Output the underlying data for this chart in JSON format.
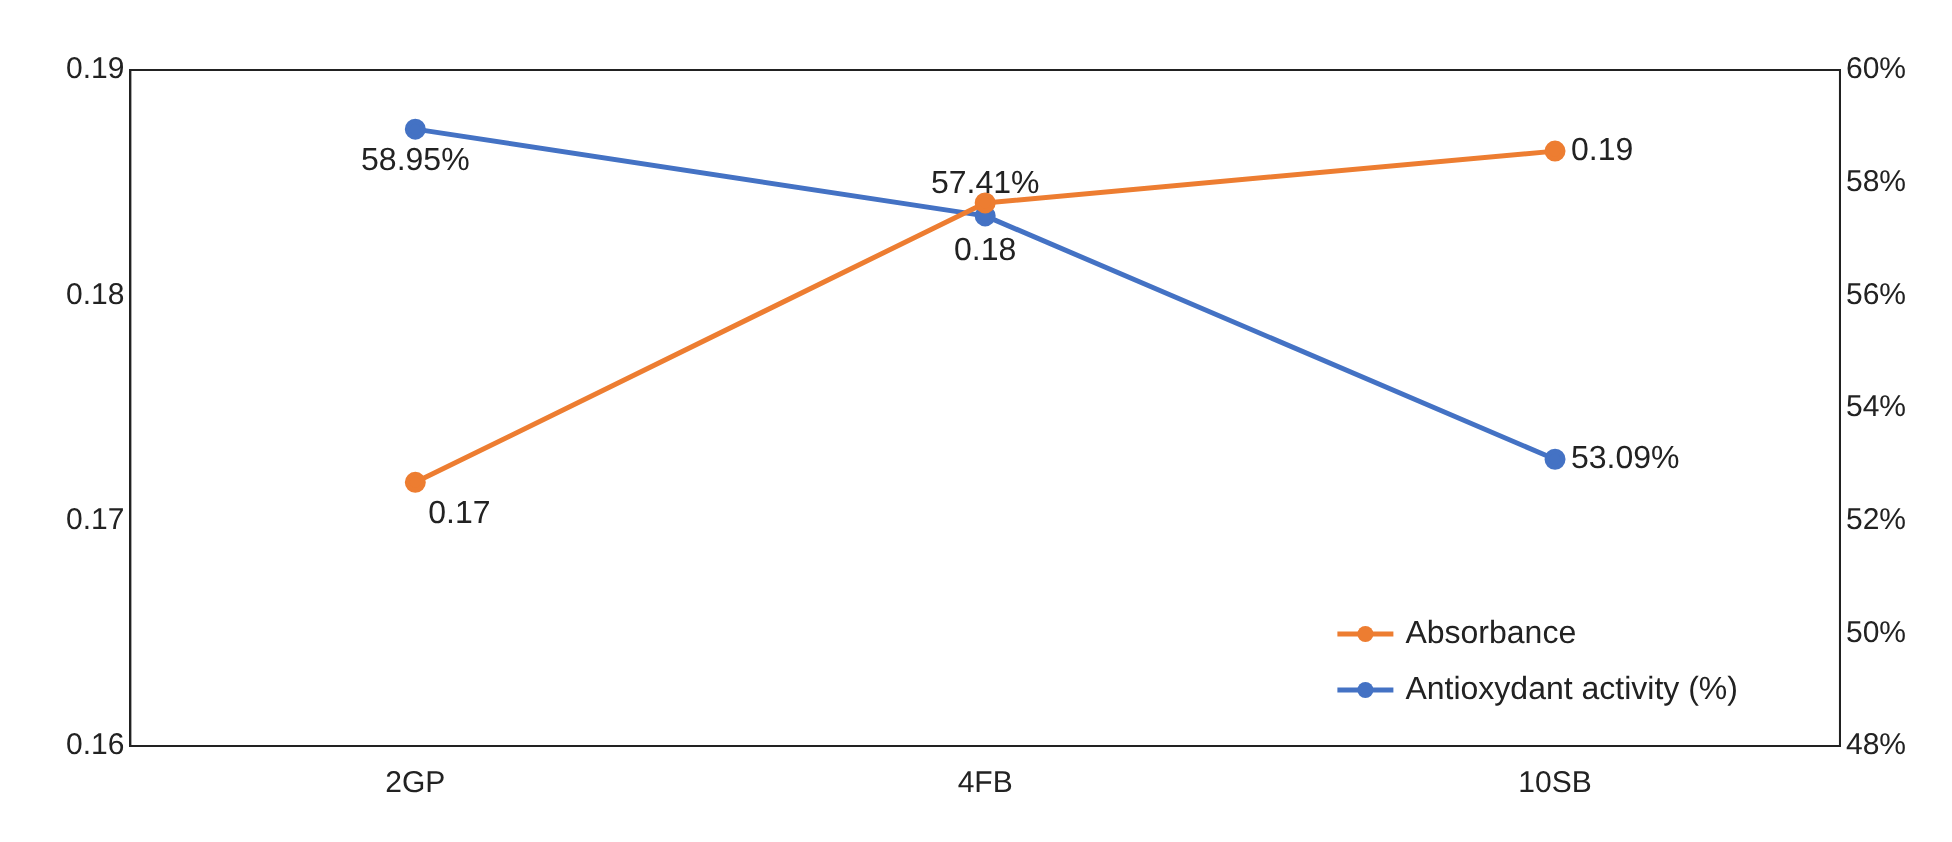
{
  "chart_data": {
    "type": "line",
    "categories": [
      "2GP",
      "4FB",
      "10SB"
    ],
    "series": [
      {
        "name": "Absorbance",
        "color": "#ed7d31",
        "values": [
          0.1717,
          0.1841,
          0.1864
        ],
        "value_labels": [
          "0.17",
          "0.18",
          "0.19"
        ]
      },
      {
        "name": "Antioxydant activity (%)",
        "color": "#4472c4",
        "axis": "y2",
        "values": [
          58.95,
          57.41,
          53.09
        ],
        "value_labels": [
          "58.95%",
          "57.41%",
          "53.09%"
        ]
      }
    ],
    "ylim": [
      0.16,
      0.19
    ],
    "yticks": [
      0.16,
      0.17,
      0.18,
      0.19
    ],
    "y2lim": [
      48,
      60
    ],
    "y2ticks": [
      {
        "value": 48,
        "label": "48%"
      },
      {
        "value": 50,
        "label": "50%"
      },
      {
        "value": 52,
        "label": "52%"
      },
      {
        "value": 54,
        "label": "54%"
      },
      {
        "value": 56,
        "label": "56%"
      },
      {
        "value": 58,
        "label": "58%"
      },
      {
        "value": 60,
        "label": "60%"
      }
    ],
    "grid": false,
    "legend": "bottom right",
    "marker": "circle",
    "line_style": "solid"
  }
}
